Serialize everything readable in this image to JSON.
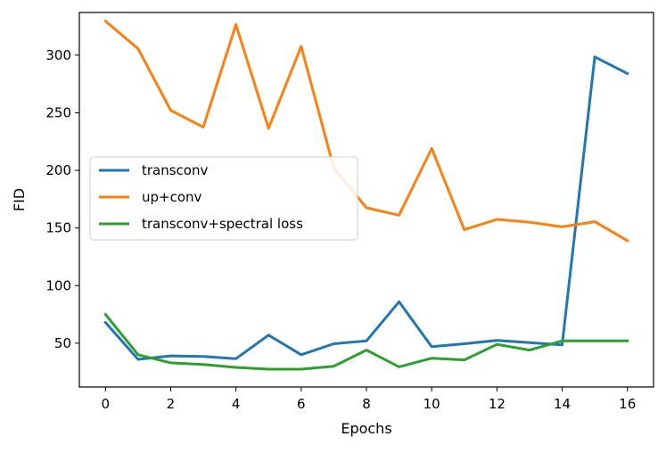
{
  "chart_data": {
    "type": "line",
    "title": "",
    "xlabel": "Epochs",
    "ylabel": "FID",
    "xlim": [
      -0.8,
      16.8
    ],
    "ylim": [
      12,
      337
    ],
    "xticks": [
      0,
      2,
      4,
      6,
      8,
      10,
      12,
      14,
      16
    ],
    "yticks": [
      50,
      100,
      150,
      200,
      250,
      300
    ],
    "grid": false,
    "legend": "center-left",
    "x": [
      0,
      1,
      2,
      3,
      4,
      5,
      6,
      7,
      8,
      9,
      10,
      11,
      12,
      13,
      14,
      15,
      16
    ],
    "series": [
      {
        "name": "transconv",
        "color": "#1f77b4",
        "values": [
          68,
          36,
          39,
          38.5,
          36.5,
          57,
          40,
          49.5,
          52,
          86,
          47,
          49.5,
          52.5,
          50.5,
          48.5,
          298.5,
          284
        ]
      },
      {
        "name": "up+conv",
        "color": "#ff7f0e",
        "values": [
          329.5,
          305.5,
          252,
          237.5,
          326.5,
          236.5,
          307.5,
          202,
          167.5,
          161,
          219,
          148.5,
          157.5,
          155,
          151,
          155.5,
          139
        ]
      },
      {
        "name": "transconv+spectral loss",
        "color": "#2ca02c",
        "values": [
          75,
          40,
          33,
          31.5,
          29,
          27.5,
          27.5,
          30,
          44,
          29.5,
          37,
          35.5,
          49,
          44,
          52,
          52,
          52
        ]
      }
    ]
  }
}
